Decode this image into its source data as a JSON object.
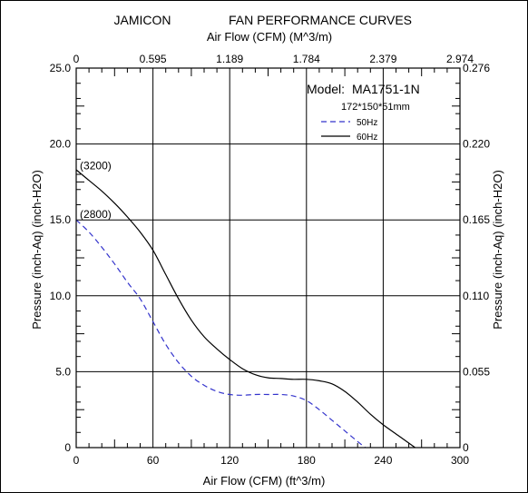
{
  "chart_data": {
    "type": "line",
    "brand": "JAMICON",
    "title": "FAN PERFORMANCE CURVES",
    "x_top_label": "Air Flow (CFM) (M^3/m)",
    "xlabel": "Air Flow (CFM) (ft^3/m)",
    "ylabel_left": "Pressure (inch-Aq) (inch-H2O)",
    "ylabel_right": "Pressure (inch-Aq) (inch-H2O)",
    "xlim": [
      0,
      300
    ],
    "ylim": [
      0,
      25
    ],
    "x_ticks_bottom": [
      "0",
      "60",
      "120",
      "180",
      "240",
      "300"
    ],
    "x_ticks_top": [
      "0",
      "0.595",
      "1.189",
      "1.784",
      "2.379",
      "2.974"
    ],
    "y_ticks_left": [
      "0",
      "5.0",
      "10.0",
      "15.0",
      "20.0",
      "25.0"
    ],
    "y_ticks_right": [
      "0",
      "0.055",
      "0.110",
      "0.165",
      "0.220",
      "0.276"
    ],
    "grid": true,
    "model_label": "Model:",
    "model": "MA1751-1N",
    "dimensions": "172*150*51mm",
    "annotations": [
      {
        "text": "(3200)",
        "x": 5,
        "y": 18.2
      },
      {
        "text": "(2800)",
        "x": 5,
        "y": 15.0
      }
    ],
    "series": [
      {
        "name": "50Hz",
        "color": "#3333cc",
        "dash": true,
        "x": [
          0,
          10,
          20,
          30,
          40,
          50,
          60,
          70,
          80,
          90,
          100,
          110,
          120,
          130,
          140,
          150,
          160,
          170,
          180,
          190,
          200,
          210,
          220,
          226
        ],
        "y": [
          15.0,
          14.2,
          13.2,
          12.1,
          10.9,
          9.8,
          8.3,
          6.8,
          5.6,
          4.7,
          4.1,
          3.7,
          3.5,
          3.45,
          3.5,
          3.5,
          3.5,
          3.4,
          3.1,
          2.5,
          1.8,
          1.1,
          0.4,
          0
        ]
      },
      {
        "name": "60Hz",
        "color": "#000000",
        "dash": false,
        "x": [
          0,
          10,
          20,
          30,
          40,
          50,
          60,
          70,
          80,
          90,
          100,
          110,
          120,
          130,
          140,
          150,
          160,
          170,
          180,
          190,
          200,
          210,
          220,
          230,
          240,
          250,
          260,
          265
        ],
        "y": [
          18.3,
          17.6,
          16.9,
          16.1,
          15.2,
          14.2,
          13.0,
          11.4,
          9.8,
          8.4,
          7.3,
          6.5,
          5.8,
          5.2,
          4.8,
          4.6,
          4.55,
          4.5,
          4.5,
          4.4,
          4.2,
          3.7,
          3.0,
          2.2,
          1.5,
          0.9,
          0.3,
          0
        ]
      }
    ]
  }
}
